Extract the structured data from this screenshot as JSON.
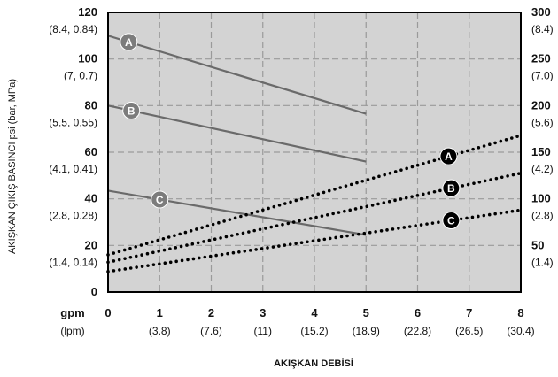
{
  "chart_data": {
    "type": "line",
    "title": "",
    "xlabel": "AKIŞKAN DEBİSİ",
    "ylabel": "AKIŞKAN ÇIKIŞ BASINCI psi (bar, MPa)",
    "xlim": [
      0,
      8
    ],
    "ylim_left": [
      0,
      120
    ],
    "ylim_right": [
      0,
      300
    ],
    "grid": true,
    "x_unit_labels": {
      "main": "gpm",
      "sub": "(lpm)"
    },
    "x_ticks": [
      {
        "value": 0,
        "main": "0",
        "sub": ""
      },
      {
        "value": 1,
        "main": "1",
        "sub": "(3.8)"
      },
      {
        "value": 2,
        "main": "2",
        "sub": "(7.6)"
      },
      {
        "value": 3,
        "main": "3",
        "sub": "(11)"
      },
      {
        "value": 4,
        "main": "4",
        "sub": "(15.2)"
      },
      {
        "value": 5,
        "main": "5",
        "sub": "(18.9)"
      },
      {
        "value": 6,
        "main": "6",
        "sub": "(22.8)"
      },
      {
        "value": 7,
        "main": "7",
        "sub": "(26.5)"
      },
      {
        "value": 8,
        "main": "8",
        "sub": "(30.4)"
      }
    ],
    "y_left_ticks": [
      {
        "value": 0,
        "main": "0",
        "sub": ""
      },
      {
        "value": 20,
        "main": "20",
        "sub": "(1.4, 0.14)"
      },
      {
        "value": 40,
        "main": "40",
        "sub": "(2.8, 0.28)"
      },
      {
        "value": 60,
        "main": "60",
        "sub": "(4.1, 0.41)"
      },
      {
        "value": 80,
        "main": "80",
        "sub": "(5.5, 0.55)"
      },
      {
        "value": 100,
        "main": "100",
        "sub": "(7, 0.7)"
      },
      {
        "value": 120,
        "main": "120",
        "sub": "(8.4, 0.84)"
      }
    ],
    "y_right_ticks": [
      {
        "value": 50,
        "main": "50",
        "sub": "(1.4)"
      },
      {
        "value": 100,
        "main": "100",
        "sub": "(2.8)"
      },
      {
        "value": 150,
        "main": "150",
        "sub": "(4.2)"
      },
      {
        "value": 200,
        "main": "200",
        "sub": "(5.6)"
      },
      {
        "value": 250,
        "main": "250",
        "sub": "(7.0)"
      },
      {
        "value": 300,
        "main": "300",
        "sub": "(8.4)"
      }
    ],
    "series": [
      {
        "label": "A",
        "axis": "left",
        "style": "solid",
        "color": "#6a6a6a",
        "x": [
          0,
          5
        ],
        "y": [
          110,
          76.5
        ],
        "marker_x": 0.4
      },
      {
        "label": "B",
        "axis": "left",
        "style": "solid",
        "color": "#6a6a6a",
        "x": [
          0,
          5
        ],
        "y": [
          80,
          56
        ],
        "marker_x": 0.45
      },
      {
        "label": "C",
        "axis": "left",
        "style": "solid",
        "color": "#6a6a6a",
        "x": [
          0,
          5
        ],
        "y": [
          43.5,
          24.5
        ],
        "marker_x": 1.0
      },
      {
        "label": "A",
        "axis": "right",
        "style": "dotted",
        "color": "#000000",
        "x": [
          0,
          8
        ],
        "y": [
          40,
          168
        ],
        "marker_x": 6.6
      },
      {
        "label": "B",
        "axis": "right",
        "style": "dotted",
        "color": "#000000",
        "x": [
          0,
          8
        ],
        "y": [
          32,
          127.5
        ],
        "marker_x": 6.65
      },
      {
        "label": "C",
        "axis": "right",
        "style": "dotted",
        "color": "#000000",
        "x": [
          0,
          8
        ],
        "y": [
          22,
          88
        ],
        "marker_x": 6.65
      }
    ],
    "colors": {
      "plot_bg": "#d3d3d3",
      "grid": "#9a9a9a",
      "frame": "#000000"
    }
  }
}
